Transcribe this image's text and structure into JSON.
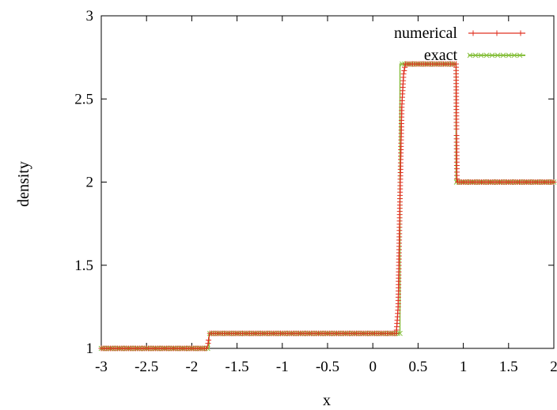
{
  "chart_data": {
    "type": "line",
    "title": "",
    "xlabel": "x",
    "ylabel": "density",
    "xlim": [
      -3,
      2
    ],
    "ylim": [
      1,
      3
    ],
    "xticks": [
      "-3",
      "-2.5",
      "-2",
      "-1.5",
      "-1",
      "-0.5",
      "0",
      "0.5",
      "1",
      "1.5",
      "2"
    ],
    "yticks": [
      "1",
      "1.5",
      "2",
      "2.5",
      "3"
    ],
    "grid": false,
    "legend": "top-right",
    "series": [
      {
        "name": "numerical",
        "color": "#e03020",
        "marker": "plus",
        "x": [
          -3.0,
          -1.83,
          -1.82,
          -1.81,
          -1.8,
          0.26,
          0.28,
          0.3,
          0.32,
          0.34,
          0.36,
          0.92,
          0.925,
          0.93,
          2.0
        ],
        "y": [
          1.0,
          1.0,
          1.03,
          1.07,
          1.09,
          1.09,
          1.25,
          1.9,
          2.45,
          2.65,
          2.71,
          2.71,
          2.3,
          2.0,
          2.0
        ]
      },
      {
        "name": "exact",
        "color": "#88c040",
        "marker": "x",
        "x": [
          -3.0,
          -1.81,
          -1.81,
          0.3,
          0.3,
          0.92,
          0.92,
          2.0
        ],
        "y": [
          1.0,
          1.0,
          1.09,
          1.09,
          2.71,
          2.71,
          2.0,
          2.0
        ]
      }
    ]
  }
}
